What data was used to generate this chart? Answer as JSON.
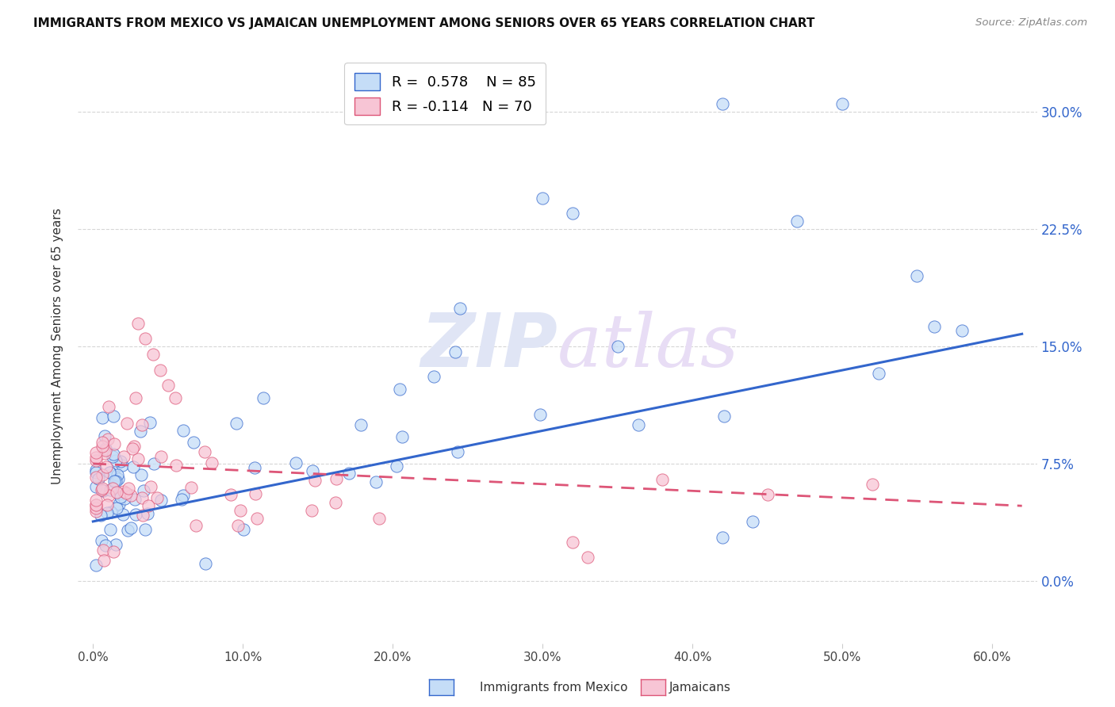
{
  "title": "IMMIGRANTS FROM MEXICO VS JAMAICAN UNEMPLOYMENT AMONG SENIORS OVER 65 YEARS CORRELATION CHART",
  "source": "Source: ZipAtlas.com",
  "ylabel": "Unemployment Among Seniors over 65 years",
  "xlabel_ticks": [
    "0.0%",
    "10.0%",
    "20.0%",
    "30.0%",
    "40.0%",
    "50.0%",
    "60.0%"
  ],
  "xlabel_vals": [
    0.0,
    0.1,
    0.2,
    0.3,
    0.4,
    0.5,
    0.6
  ],
  "ytick_labels": [
    "0.0%",
    "7.5%",
    "15.0%",
    "22.5%",
    "30.0%"
  ],
  "ytick_vals": [
    0.0,
    0.075,
    0.15,
    0.225,
    0.3
  ],
  "xlim": [
    -0.01,
    0.63
  ],
  "ylim": [
    -0.04,
    0.34
  ],
  "legend1_label": "R =  0.578    N = 85",
  "legend2_label": "R = -0.114   N = 70",
  "legend1_color": "#c5ddf7",
  "legend2_color": "#f7c5d5",
  "line1_color": "#3366cc",
  "line2_color": "#dd5577",
  "watermark": "ZIPatlas",
  "watermark_color": "#e0e5f5",
  "background_color": "#ffffff",
  "line1_x0": 0.0,
  "line1_x1": 0.62,
  "line1_y0": 0.038,
  "line1_y1": 0.158,
  "line2_x0": 0.0,
  "line2_x1": 0.62,
  "line2_y0": 0.075,
  "line2_y1": 0.048
}
